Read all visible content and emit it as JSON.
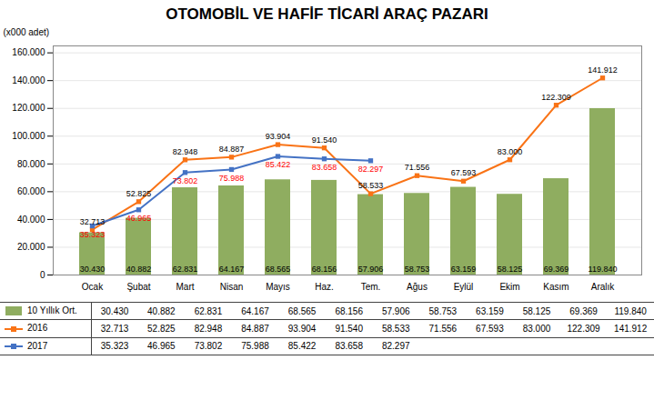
{
  "chart_data": {
    "type": "bar",
    "title": "OTOMOBİL VE HAFİF TİCARİ ARAÇ PAZARI",
    "ylabel": "(x000 adet)",
    "categories": [
      "Ocak",
      "Şubat",
      "Mart",
      "Nisan",
      "Mayıs",
      "Haz.",
      "Tem.",
      "Ağus",
      "Eylül",
      "Ekim",
      "Kasım",
      "Aralık"
    ],
    "series": [
      {
        "name": "10 Yıllık Ort.",
        "type": "bar",
        "color": "#8fad60",
        "values": [
          30430,
          40882,
          62831,
          64167,
          68565,
          68156,
          57906,
          58753,
          63159,
          58125,
          69369,
          119840
        ],
        "value_labels": [
          "30.430",
          "40.882",
          "62.831",
          "64.167",
          "68.565",
          "68.156",
          "57.906",
          "58.753",
          "63.159",
          "58.125",
          "69.369",
          "119.840"
        ]
      },
      {
        "name": "2016",
        "type": "line",
        "color": "#f97316",
        "marker": "square",
        "values": [
          32713,
          52825,
          82948,
          84887,
          93904,
          91540,
          58533,
          71556,
          67593,
          83000,
          122309,
          141912
        ],
        "value_labels": [
          "32.713",
          "52.825",
          "82.948",
          "84.887",
          "93.904",
          "91.540",
          "58.533",
          "71.556",
          "67.593",
          "83.000",
          "122.309",
          "141.912"
        ]
      },
      {
        "name": "2017",
        "type": "line",
        "color": "#4472c4",
        "marker": "square",
        "values": [
          35323,
          46965,
          73802,
          75988,
          85422,
          83658,
          82297,
          null,
          null,
          null,
          null,
          null
        ],
        "value_labels": [
          "35.323",
          "46.965",
          "73.802",
          "75.988",
          "85.422",
          "83.658",
          "82.297",
          null,
          null,
          null,
          null,
          null
        ]
      }
    ],
    "ylim": [
      0,
      165000
    ],
    "yticks": [
      0,
      {
        "value": 20000,
        "label": "20.000"
      },
      {
        "value": 40000,
        "label": "40.000"
      },
      {
        "value": 60000,
        "label": "60.000"
      },
      {
        "value": 80000,
        "label": "80.000"
      },
      {
        "value": 100000,
        "label": "100.000"
      },
      {
        "value": 120000,
        "label": "120.000"
      },
      {
        "value": 140000,
        "label": "140.000"
      },
      {
        "value": 160000,
        "label": "160.000"
      }
    ],
    "grid": true,
    "data_labels": true
  }
}
